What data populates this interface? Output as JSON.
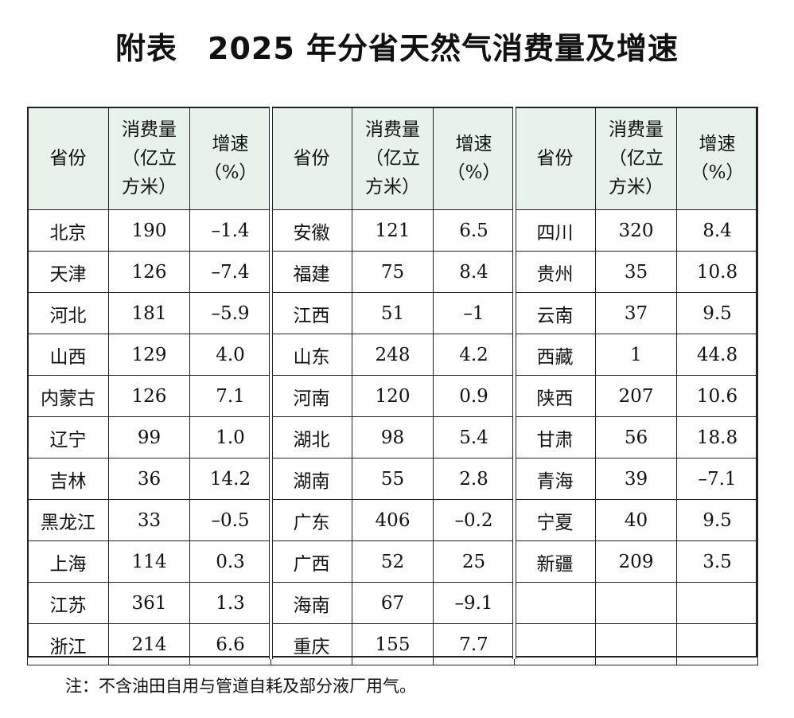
{
  "title": {
    "prefix": "附表",
    "main": "2025 年分省天然气消费量及增速"
  },
  "table": {
    "headers": {
      "province": "省份",
      "volume": [
        "消费量",
        "（亿立",
        "方米）"
      ],
      "growth": [
        "增速",
        "（%）"
      ]
    },
    "blocks": [
      {
        "rows": [
          {
            "province": "北京",
            "volume": "190",
            "growth": "–1.4"
          },
          {
            "province": "天津",
            "volume": "126",
            "growth": "–7.4"
          },
          {
            "province": "河北",
            "volume": "181",
            "growth": "–5.9"
          },
          {
            "province": "山西",
            "volume": "129",
            "growth": "4.0"
          },
          {
            "province": "内蒙古",
            "volume": "126",
            "growth": "7.1"
          },
          {
            "province": "辽宁",
            "volume": "99",
            "growth": "1.0"
          },
          {
            "province": "吉林",
            "volume": "36",
            "growth": "14.2"
          },
          {
            "province": "黑龙江",
            "volume": "33",
            "growth": "–0.5"
          },
          {
            "province": "上海",
            "volume": "114",
            "growth": "0.3"
          },
          {
            "province": "江苏",
            "volume": "361",
            "growth": "1.3"
          },
          {
            "province": "浙江",
            "volume": "214",
            "growth": "6.6"
          }
        ]
      },
      {
        "rows": [
          {
            "province": "安徽",
            "volume": "121",
            "growth": "6.5"
          },
          {
            "province": "福建",
            "volume": "75",
            "growth": "8.4"
          },
          {
            "province": "江西",
            "volume": "51",
            "growth": "–1"
          },
          {
            "province": "山东",
            "volume": "248",
            "growth": "4.2"
          },
          {
            "province": "河南",
            "volume": "120",
            "growth": "0.9"
          },
          {
            "province": "湖北",
            "volume": "98",
            "growth": "5.4"
          },
          {
            "province": "湖南",
            "volume": "55",
            "growth": "2.8"
          },
          {
            "province": "广东",
            "volume": "406",
            "growth": "–0.2"
          },
          {
            "province": "广西",
            "volume": "52",
            "growth": "25"
          },
          {
            "province": "海南",
            "volume": "67",
            "growth": "–9.1"
          },
          {
            "province": "重庆",
            "volume": "155",
            "growth": "7.7"
          }
        ]
      },
      {
        "rows": [
          {
            "province": "四川",
            "volume": "320",
            "growth": "8.4"
          },
          {
            "province": "贵州",
            "volume": "35",
            "growth": "10.8"
          },
          {
            "province": "云南",
            "volume": "37",
            "growth": "9.5"
          },
          {
            "province": "西藏",
            "volume": "1",
            "growth": "44.8"
          },
          {
            "province": "陕西",
            "volume": "207",
            "growth": "10.6"
          },
          {
            "province": "甘肃",
            "volume": "56",
            "growth": "18.8"
          },
          {
            "province": "青海",
            "volume": "39",
            "growth": "–7.1"
          },
          {
            "province": "宁夏",
            "volume": "40",
            "growth": "9.5"
          },
          {
            "province": "新疆",
            "volume": "209",
            "growth": "3.5"
          },
          {
            "province": "",
            "volume": "",
            "growth": ""
          },
          {
            "province": "",
            "volume": "",
            "growth": ""
          }
        ]
      }
    ]
  },
  "note": "注：不含油田自用与管道自耗及部分液厂用气。",
  "colors": {
    "header_bg": "#e6f2ea",
    "border": "#222222"
  }
}
